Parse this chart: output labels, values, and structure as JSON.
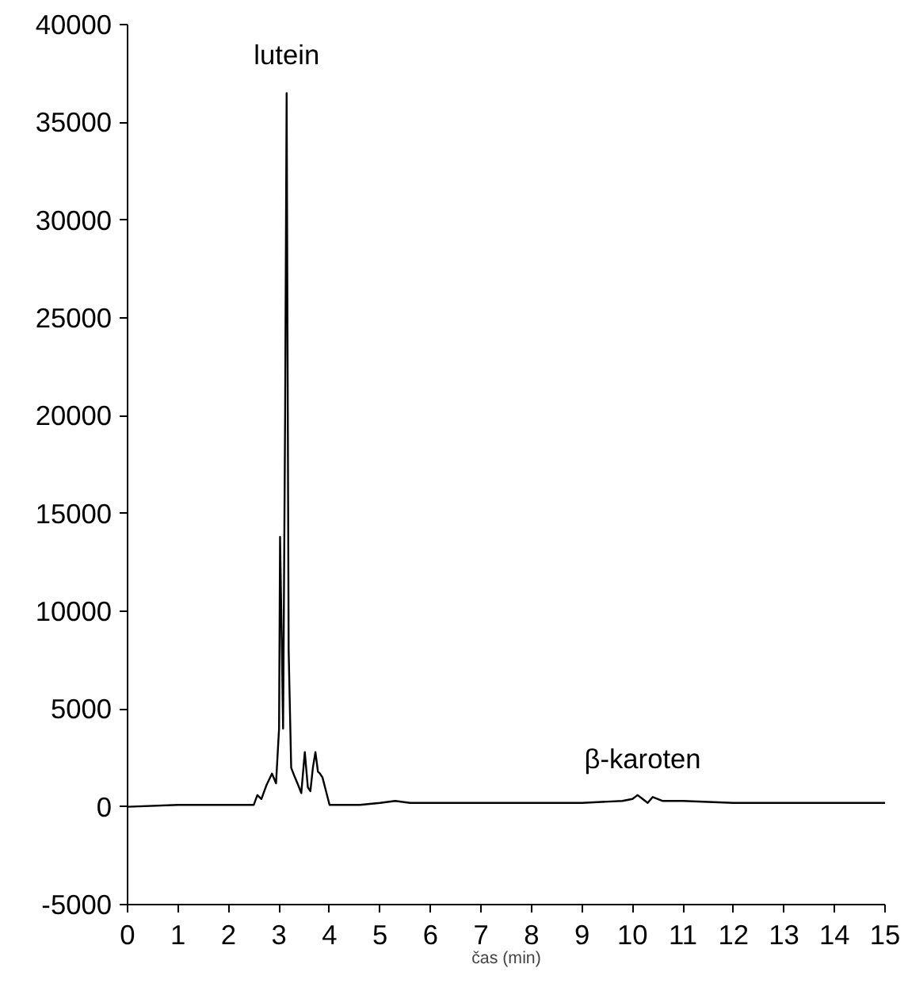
{
  "chart_data": {
    "type": "line",
    "xlabel": "čas (min)",
    "xlim": [
      0,
      15
    ],
    "xticks": [
      0,
      1,
      2,
      3,
      4,
      5,
      6,
      7,
      8,
      9,
      10,
      11,
      12,
      13,
      14,
      15
    ],
    "ylim": [
      -5000,
      40000
    ],
    "yticks": [
      -5000,
      0,
      5000,
      10000,
      15000,
      20000,
      25000,
      30000,
      35000,
      40000
    ],
    "grid": false,
    "marker": "none",
    "line_style": "solid",
    "annotations": [
      {
        "text": "lutein",
        "x": 3.15,
        "y": 36500
      },
      {
        "text": "β-karoten",
        "x": 10.2,
        "y": 500
      }
    ],
    "series": [
      {
        "color": "#000000",
        "x": [
          0,
          1,
          2,
          2.5,
          2.57,
          2.65,
          2.75,
          2.86,
          2.94,
          3.0,
          3.02,
          3.05,
          3.08,
          3.12,
          3.15,
          3.19,
          3.24,
          3.3,
          3.38,
          3.44,
          3.51,
          3.57,
          3.62,
          3.67,
          3.72,
          3.77,
          3.81,
          3.86,
          3.92,
          4.0,
          4.2,
          4.6,
          5.0,
          5.3,
          5.6,
          6,
          7,
          8,
          9,
          9.8,
          10.0,
          10.1,
          10.2,
          10.3,
          10.4,
          10.6,
          11,
          12,
          13,
          14,
          15
        ],
        "values": [
          0,
          100,
          100,
          100,
          600,
          400,
          1100,
          1700,
          1200,
          4000,
          13800,
          9000,
          4000,
          20000,
          36500,
          8000,
          2000,
          1600,
          1100,
          700,
          2800,
          1000,
          800,
          2000,
          2800,
          1800,
          1700,
          1500,
          900,
          100,
          100,
          100,
          200,
          300,
          200,
          200,
          200,
          200,
          200,
          300,
          400,
          600,
          400,
          200,
          500,
          300,
          300,
          200,
          200,
          200,
          200
        ]
      }
    ]
  }
}
